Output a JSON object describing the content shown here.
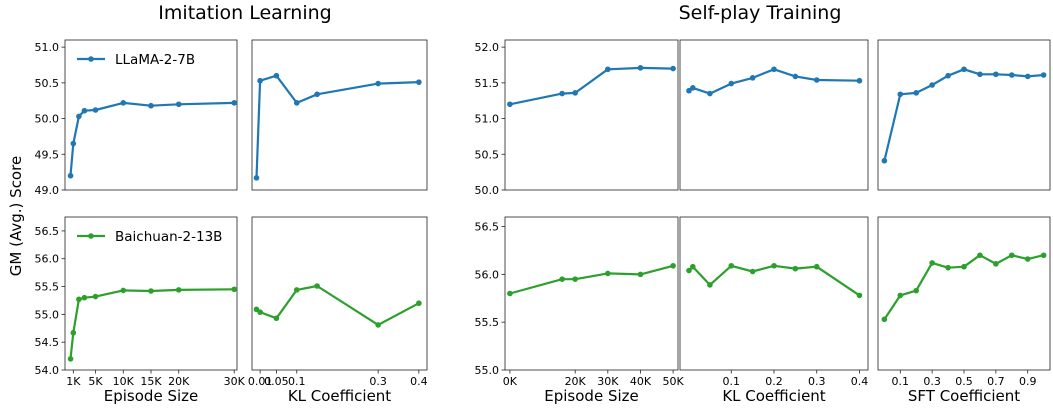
{
  "figure": {
    "titles": [
      "Imitation Learning",
      "Self-play Training"
    ],
    "ylabel": "GM (Avg.) Score"
  },
  "colors": {
    "llama": "#1f77b4",
    "baichuan": "#2ca02c"
  },
  "chart_data": [
    {
      "type": "line",
      "group": "Imitation Learning",
      "row": "top",
      "legend": "LLaMA-2-7B",
      "xlabel": "",
      "xlim": [
        -500,
        30500
      ],
      "xticks": [],
      "xtick_labels": [],
      "ylim": [
        49.0,
        51.1
      ],
      "yticks": [
        49.0,
        49.5,
        50.0,
        50.5,
        51.0
      ],
      "ytick_labels": [
        "49.0",
        "49.5",
        "50.0",
        "50.5",
        "51.0"
      ],
      "series": [
        {
          "x": [
            500,
            1000,
            2000,
            3000,
            5000,
            10000,
            15000,
            20000,
            30000
          ],
          "y": [
            49.2,
            49.65,
            50.03,
            50.11,
            50.12,
            50.22,
            50.18,
            50.2,
            50.22
          ]
        }
      ]
    },
    {
      "type": "line",
      "group": "Imitation Learning",
      "row": "top",
      "xlabel": "",
      "xlim": [
        -0.01,
        0.42
      ],
      "xticks": [],
      "xtick_labels": [],
      "ylim": [
        49.0,
        51.1
      ],
      "yticks": [],
      "ytick_labels": [],
      "series": [
        {
          "x": [
            0.001,
            0.01,
            0.05,
            0.1,
            0.15,
            0.3,
            0.4
          ],
          "y": [
            49.17,
            50.53,
            50.6,
            50.22,
            50.34,
            50.49,
            50.51
          ]
        }
      ]
    },
    {
      "type": "line",
      "group": "Self-play Training",
      "row": "top",
      "xlabel": "",
      "xlim": [
        -1500,
        51500
      ],
      "xticks": [],
      "xtick_labels": [],
      "ylim": [
        50.0,
        52.1
      ],
      "yticks": [
        50.0,
        50.5,
        51.0,
        51.5,
        52.0
      ],
      "ytick_labels": [
        "50.0",
        "50.5",
        "51.0",
        "51.5",
        "52.0"
      ],
      "series": [
        {
          "x": [
            0,
            16000,
            20000,
            30000,
            40000,
            50000
          ],
          "y": [
            51.2,
            51.35,
            51.36,
            51.69,
            51.71,
            51.7
          ]
        }
      ]
    },
    {
      "type": "line",
      "group": "Self-play Training",
      "row": "top",
      "xlabel": "",
      "xlim": [
        -0.02,
        0.42
      ],
      "xticks": [],
      "xtick_labels": [],
      "ylim": [
        50.0,
        52.1
      ],
      "yticks": [],
      "ytick_labels": [],
      "series": [
        {
          "x": [
            0.001,
            0.01,
            0.05,
            0.1,
            0.15,
            0.2,
            0.25,
            0.3,
            0.4
          ],
          "y": [
            51.39,
            51.43,
            51.35,
            51.49,
            51.57,
            51.69,
            51.59,
            51.54,
            51.53
          ]
        }
      ]
    },
    {
      "type": "line",
      "group": "Self-play Training",
      "row": "top",
      "xlabel": "",
      "xlim": [
        -0.04,
        1.04
      ],
      "xticks": [],
      "xtick_labels": [],
      "ylim": [
        50.0,
        52.1
      ],
      "yticks": [],
      "ytick_labels": [],
      "series": [
        {
          "x": [
            0,
            0.1,
            0.2,
            0.3,
            0.4,
            0.5,
            0.6,
            0.7,
            0.8,
            0.9,
            1.0
          ],
          "y": [
            50.41,
            51.34,
            51.36,
            51.47,
            51.6,
            51.69,
            51.62,
            51.62,
            51.61,
            51.59,
            51.61
          ]
        }
      ]
    },
    {
      "type": "line",
      "group": "Imitation Learning",
      "row": "bottom",
      "legend": "Baichuan-2-13B",
      "xlabel": "Episode Size",
      "xlim": [
        -500,
        30500
      ],
      "xticks": [
        1000,
        5000,
        10000,
        15000,
        20000,
        30000
      ],
      "xtick_labels": [
        "1K",
        "5K",
        "10K",
        "15K",
        "20K",
        "30K"
      ],
      "ylim": [
        54.0,
        56.75
      ],
      "yticks": [
        54.0,
        54.5,
        55.0,
        55.5,
        56.0,
        56.5
      ],
      "ytick_labels": [
        "54.0",
        "54.5",
        "55.0",
        "55.5",
        "56.0",
        "56.5"
      ],
      "series": [
        {
          "x": [
            500,
            1000,
            2000,
            3000,
            5000,
            10000,
            15000,
            20000,
            30000
          ],
          "y": [
            54.2,
            54.67,
            55.27,
            55.3,
            55.32,
            55.43,
            55.42,
            55.44,
            55.45
          ]
        }
      ]
    },
    {
      "type": "line",
      "group": "Imitation Learning",
      "row": "bottom",
      "xlabel": "KL Coefficient",
      "xlim": [
        -0.01,
        0.42
      ],
      "xticks": [
        0.01,
        0.05,
        0.1,
        0.3,
        0.4
      ],
      "xtick_labels": [
        "0.01",
        "0.05",
        "0.1",
        "0.3",
        "0.4"
      ],
      "ylim": [
        54.0,
        56.75
      ],
      "yticks": [],
      "ytick_labels": [],
      "series": [
        {
          "x": [
            0.001,
            0.01,
            0.05,
            0.1,
            0.15,
            0.3,
            0.4
          ],
          "y": [
            55.09,
            55.04,
            54.93,
            55.44,
            55.51,
            54.81,
            55.2
          ]
        }
      ]
    },
    {
      "type": "line",
      "group": "Self-play Training",
      "row": "bottom",
      "xlabel": "Episode Size",
      "xlim": [
        -1500,
        51500
      ],
      "xticks": [
        0,
        20000,
        30000,
        40000,
        50000
      ],
      "xtick_labels": [
        "0K",
        "20K",
        "30K",
        "40K",
        "50K"
      ],
      "ylim": [
        55.0,
        56.6
      ],
      "yticks": [
        55.0,
        55.5,
        56.0,
        56.5
      ],
      "ytick_labels": [
        "55.0",
        "55.5",
        "56.0",
        "56.5"
      ],
      "series": [
        {
          "x": [
            0,
            16000,
            20000,
            30000,
            40000,
            50000
          ],
          "y": [
            55.8,
            55.95,
            55.95,
            56.01,
            56.0,
            56.09
          ]
        }
      ]
    },
    {
      "type": "line",
      "group": "Self-play Training",
      "row": "bottom",
      "xlabel": "KL Coefficient",
      "xlim": [
        -0.02,
        0.42
      ],
      "xticks": [
        0.1,
        0.2,
        0.3,
        0.4
      ],
      "xtick_labels": [
        "0.1",
        "0.2",
        "0.3",
        "0.4"
      ],
      "ylim": [
        55.0,
        56.6
      ],
      "yticks": [],
      "ytick_labels": [],
      "series": [
        {
          "x": [
            0.001,
            0.01,
            0.05,
            0.1,
            0.15,
            0.2,
            0.25,
            0.3,
            0.4
          ],
          "y": [
            56.04,
            56.08,
            55.89,
            56.09,
            56.03,
            56.09,
            56.06,
            56.08,
            55.78
          ]
        }
      ]
    },
    {
      "type": "line",
      "group": "Self-play Training",
      "row": "bottom",
      "xlabel": "SFT Coefficient",
      "xlim": [
        -0.04,
        1.04
      ],
      "xticks": [
        0.1,
        0.3,
        0.5,
        0.7,
        0.9
      ],
      "xtick_labels": [
        "0.1",
        "0.3",
        "0.5",
        "0.7",
        "0.9"
      ],
      "ylim": [
        55.0,
        56.6
      ],
      "yticks": [],
      "ytick_labels": [],
      "series": [
        {
          "x": [
            0,
            0.1,
            0.2,
            0.3,
            0.4,
            0.5,
            0.6,
            0.7,
            0.8,
            0.9,
            1.0
          ],
          "y": [
            55.53,
            55.78,
            55.83,
            56.12,
            56.07,
            56.08,
            56.2,
            56.11,
            56.2,
            56.16,
            56.2
          ]
        }
      ]
    }
  ]
}
